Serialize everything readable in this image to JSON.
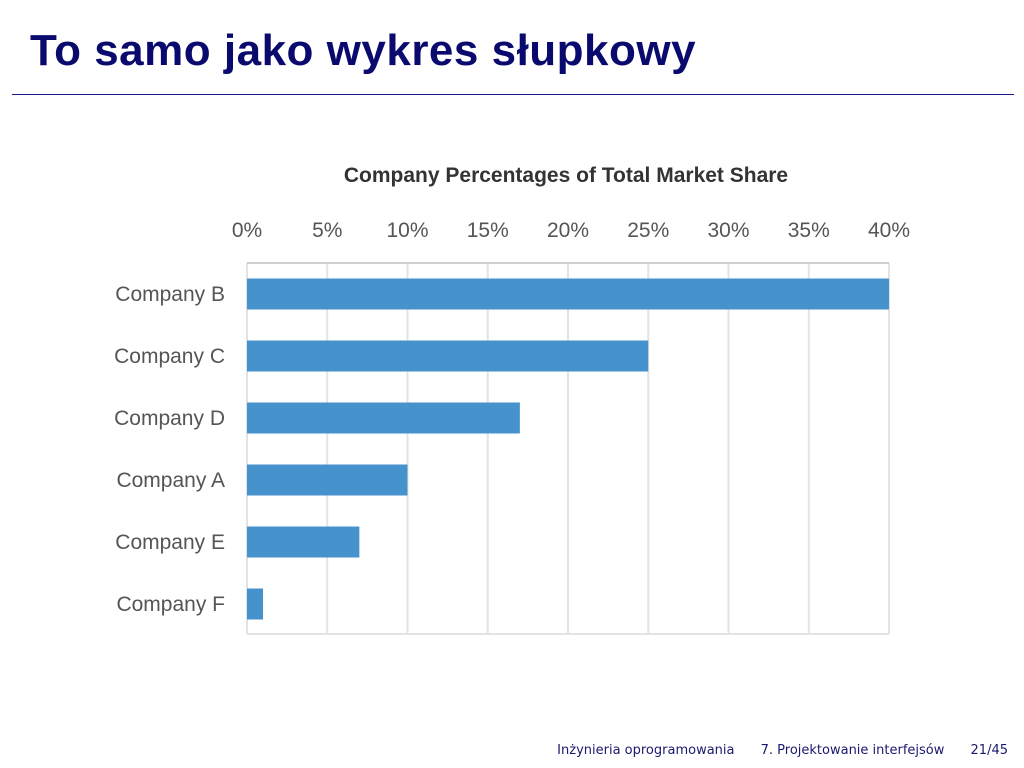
{
  "slide": {
    "title": "To samo jako wykres słupkowy",
    "footer": {
      "course": "Inżynieria oprogramowania",
      "lecture": "7. Projektowanie interfejsów",
      "page": "21/45"
    }
  },
  "chart_data": {
    "type": "bar",
    "orientation": "horizontal",
    "title": "Company Percentages  of Total Market Share",
    "xlabel": "",
    "ylabel": "",
    "xlim": [
      0,
      40
    ],
    "ticks": [
      "0%",
      "5%",
      "10%",
      "15%",
      "20%",
      "25%",
      "30%",
      "35%",
      "40%"
    ],
    "tick_values": [
      0,
      5,
      10,
      15,
      20,
      25,
      30,
      35,
      40
    ],
    "x_axis_position": "top",
    "grid": true,
    "categories": [
      "Company B",
      "Company C",
      "Company D",
      "Company A",
      "Company E",
      "Company F"
    ],
    "values": [
      40,
      25,
      17,
      10,
      7,
      1
    ],
    "bar_color": "#4592cd",
    "grid_color": "#e3e3e3"
  }
}
